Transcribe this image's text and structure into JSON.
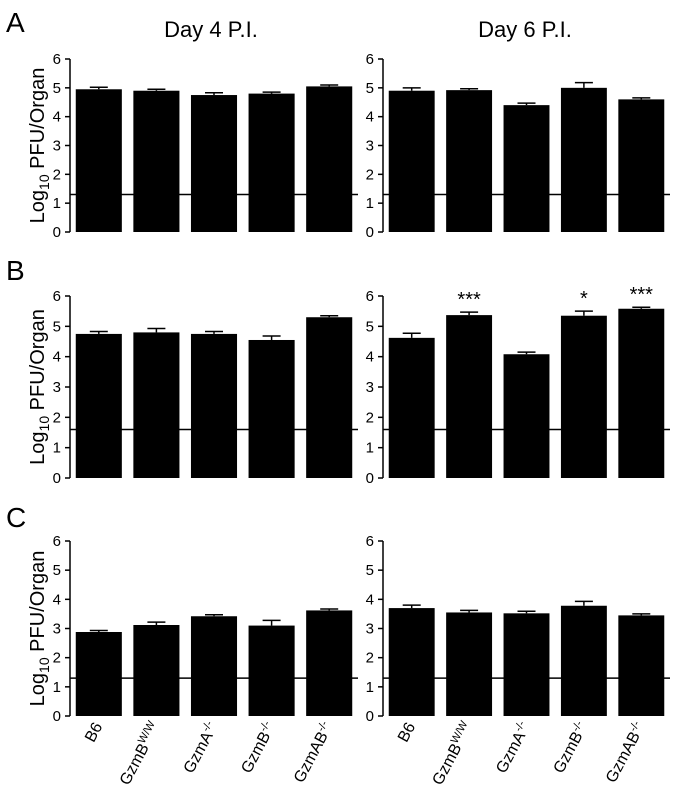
{
  "column_titles": [
    "Day 4 P.I.",
    "Day 6 P.I."
  ],
  "row_labels": [
    "A",
    "B",
    "C"
  ],
  "ylabel": {
    "main": "Log",
    "sub": "10",
    "rest": " PFU/Organ"
  },
  "yticks": [
    "0",
    "1",
    "2",
    "3",
    "4",
    "5",
    "6"
  ],
  "x_tick_labels": [
    {
      "main": "B6",
      "sup": ""
    },
    {
      "main": "GzmB",
      "sup": "W/W"
    },
    {
      "main": "GzmA",
      "sup": "-/-"
    },
    {
      "main": "GzmB",
      "sup": "-/-"
    },
    {
      "main": "GzmAB",
      "sup": "-/-"
    }
  ],
  "chart_data": [
    {
      "type": "bar",
      "row": "A",
      "column": "Day 4 P.I.",
      "categories": [
        "B6",
        "GzmBW/W",
        "GzmA-/-",
        "GzmB-/-",
        "GzmAB-/-"
      ],
      "values": [
        4.95,
        4.9,
        4.75,
        4.8,
        5.05
      ],
      "errors": [
        0.07,
        0.05,
        0.08,
        0.05,
        0.05
      ],
      "detection_limit": 1.3,
      "annotations": [
        "",
        "",
        "",
        "",
        ""
      ],
      "ylim": [
        0,
        6
      ],
      "ylabel": "Log10 PFU/Organ",
      "title": "Day 4 P.I."
    },
    {
      "type": "bar",
      "row": "A",
      "column": "Day 6 P.I.",
      "categories": [
        "B6",
        "GzmBW/W",
        "GzmA-/-",
        "GzmB-/-",
        "GzmAB-/-"
      ],
      "values": [
        4.9,
        4.92,
        4.4,
        5.0,
        4.6
      ],
      "errors": [
        0.1,
        0.05,
        0.07,
        0.18,
        0.05
      ],
      "detection_limit": 1.3,
      "annotations": [
        "",
        "",
        "",
        "",
        ""
      ],
      "ylim": [
        0,
        6
      ],
      "ylabel": "",
      "title": "Day 6 P.I."
    },
    {
      "type": "bar",
      "row": "B",
      "column": "Day 4 P.I.",
      "categories": [
        "B6",
        "GzmBW/W",
        "GzmA-/-",
        "GzmB-/-",
        "GzmAB-/-"
      ],
      "values": [
        4.75,
        4.8,
        4.75,
        4.55,
        5.3
      ],
      "errors": [
        0.08,
        0.13,
        0.08,
        0.13,
        0.05
      ],
      "detection_limit": 1.6,
      "annotations": [
        "",
        "",
        "",
        "",
        ""
      ],
      "ylim": [
        0,
        6
      ],
      "ylabel": "Log10 PFU/Organ",
      "title": ""
    },
    {
      "type": "bar",
      "row": "B",
      "column": "Day 6 P.I.",
      "categories": [
        "B6",
        "GzmBW/W",
        "GzmA-/-",
        "GzmB-/-",
        "GzmAB-/-"
      ],
      "values": [
        4.62,
        5.37,
        4.08,
        5.35,
        5.58
      ],
      "errors": [
        0.15,
        0.1,
        0.07,
        0.15,
        0.05
      ],
      "detection_limit": 1.6,
      "annotations": [
        "",
        "***",
        "",
        "*",
        "***"
      ],
      "ylim": [
        0,
        6
      ],
      "ylabel": "",
      "title": ""
    },
    {
      "type": "bar",
      "row": "C",
      "column": "Day 4 P.I.",
      "categories": [
        "B6",
        "GzmBW/W",
        "GzmA-/-",
        "GzmB-/-",
        "GzmAB-/-"
      ],
      "values": [
        2.88,
        3.12,
        3.42,
        3.1,
        3.62
      ],
      "errors": [
        0.05,
        0.1,
        0.05,
        0.18,
        0.05
      ],
      "detection_limit": 1.3,
      "annotations": [
        "",
        "",
        "",
        "",
        ""
      ],
      "ylim": [
        0,
        6
      ],
      "ylabel": "Log10 PFU/Organ",
      "title": ""
    },
    {
      "type": "bar",
      "row": "C",
      "column": "Day 6 P.I.",
      "categories": [
        "B6",
        "GzmBW/W",
        "GzmA-/-",
        "GzmB-/-",
        "GzmAB-/-"
      ],
      "values": [
        3.7,
        3.55,
        3.52,
        3.78,
        3.45
      ],
      "errors": [
        0.1,
        0.07,
        0.07,
        0.15,
        0.05
      ],
      "detection_limit": 1.3,
      "annotations": [
        "",
        "",
        "",
        "",
        ""
      ],
      "ylim": [
        0,
        6
      ],
      "ylabel": "",
      "title": ""
    }
  ]
}
